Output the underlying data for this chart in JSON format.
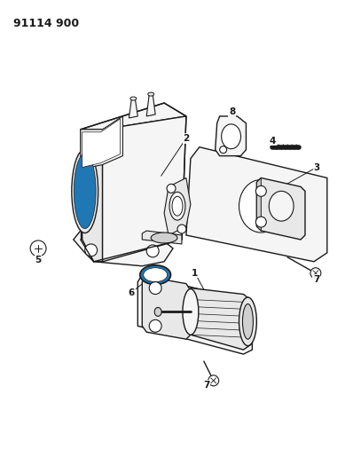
{
  "title": "91114 900",
  "background_color": "#ffffff",
  "lc": "#1a1a1a",
  "figsize": [
    3.98,
    5.33
  ],
  "dpi": 100,
  "face_light": "#f5f5f5",
  "face_mid": "#e8e8e8",
  "face_dark": "#d0d0d0",
  "face_white": "#ffffff"
}
